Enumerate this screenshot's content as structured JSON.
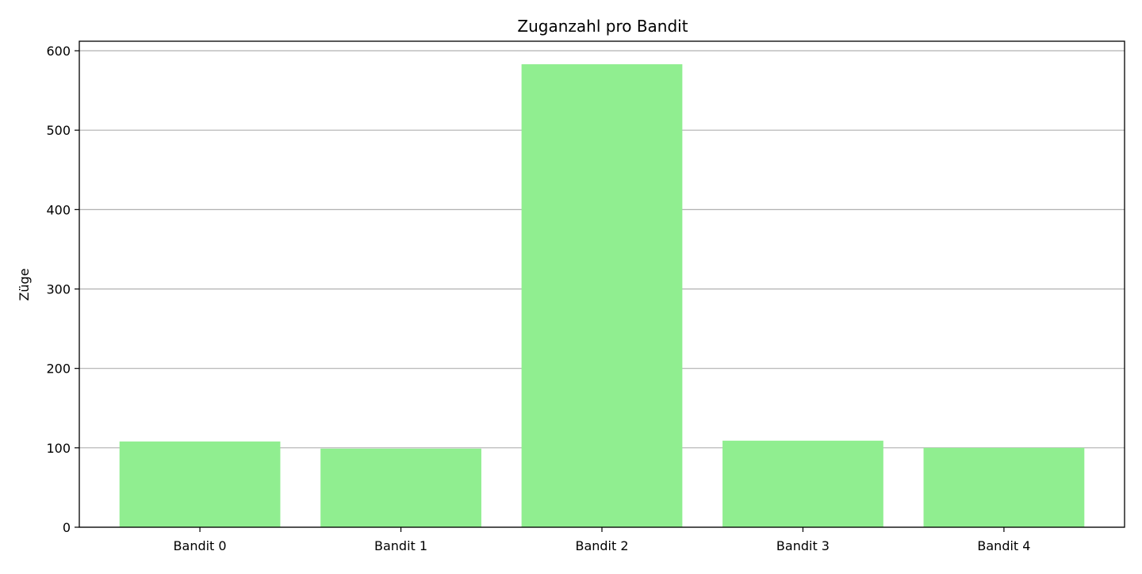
{
  "chart_data": {
    "type": "bar",
    "title": "Zuganzahl pro Bandit",
    "xlabel": "",
    "ylabel": "Züge",
    "categories": [
      "Bandit 0",
      "Bandit 1",
      "Bandit 2",
      "Bandit 3",
      "Bandit 4"
    ],
    "values": [
      108,
      99,
      583,
      109,
      100
    ],
    "ylim": [
      0,
      612
    ],
    "yticks": [
      0,
      100,
      200,
      300,
      400,
      500,
      600
    ],
    "grid": {
      "y": true,
      "x": false
    },
    "colors": {
      "bar": "#90ee90",
      "grid": "#b0b0b0",
      "axis": "#000000"
    }
  }
}
